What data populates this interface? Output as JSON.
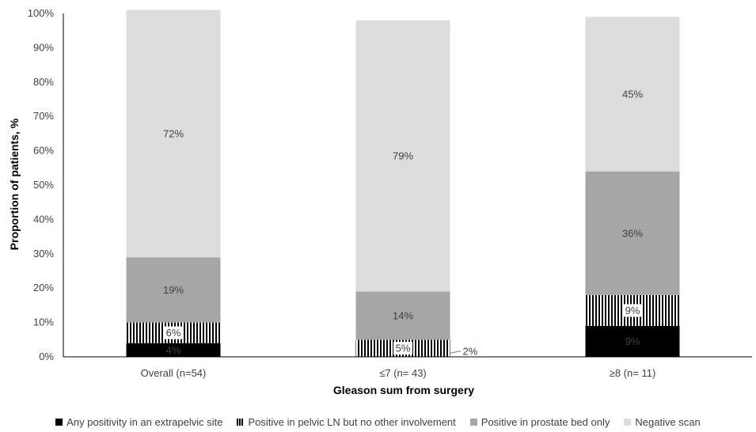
{
  "chart_data": {
    "type": "bar",
    "stacked": true,
    "categories": [
      "Overall (n=54)",
      "≤7 (n= 43)",
      "≥8 (n= 11)"
    ],
    "series": [
      {
        "name": "Any positivity in an extrapelvic site",
        "values": [
          4,
          2,
          9
        ],
        "labels": [
          "4%",
          "2%",
          "9%"
        ],
        "color": "#000000",
        "pattern": "solid"
      },
      {
        "name": "Positive in pelvic LN but no other involvement",
        "values": [
          6,
          5,
          9
        ],
        "labels": [
          "6%",
          "5%",
          "9%"
        ],
        "color": "#000000",
        "pattern": "vertical-stripes"
      },
      {
        "name": "Positive in prostate bed only",
        "values": [
          19,
          14,
          36
        ],
        "labels": [
          "19%",
          "14%",
          "36%"
        ],
        "color": "#a6a6a6",
        "pattern": "solid"
      },
      {
        "name": "Negative scan",
        "values": [
          72,
          79,
          45
        ],
        "labels": [
          "72%",
          "79%",
          "45%"
        ],
        "color": "#dcdcdc",
        "pattern": "solid"
      }
    ],
    "xlabel": "Gleason sum from surgery",
    "ylabel": "Proportion of patients, %",
    "ylim": [
      0,
      100
    ],
    "yticks": [
      "0%",
      "10%",
      "20%",
      "30%",
      "40%",
      "50%",
      "60%",
      "70%",
      "80%",
      "90%",
      "100%"
    ],
    "grid": false,
    "legend_position": "bottom"
  }
}
